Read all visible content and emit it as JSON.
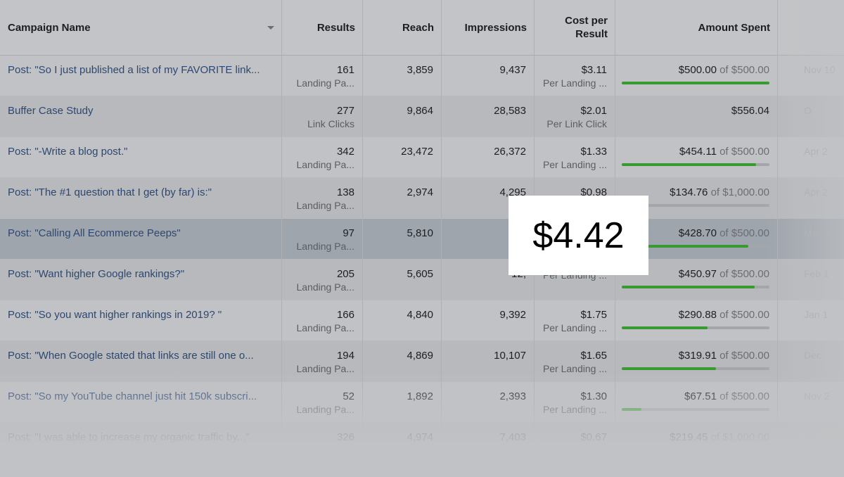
{
  "columns": {
    "campaign_name": "Campaign Name",
    "results": "Results",
    "reach": "Reach",
    "impressions": "Impressions",
    "cost_line1": "Cost per",
    "cost_line2": "Result",
    "amount_spent": "Amount Spent"
  },
  "rows": [
    {
      "name": "Post: \"So I just published a list of my FAVORITE link...",
      "results": "161",
      "result_type": "Landing Pa...",
      "reach": "3,859",
      "impressions": "9,437",
      "cost": "$3.11",
      "cost_type": "Per Landing ...",
      "spent": "$500.00",
      "of": "of $500.00",
      "progress": 1.0,
      "date": "Nov 10"
    },
    {
      "name": "Buffer Case Study",
      "results": "277",
      "result_type": "Link Clicks",
      "reach": "9,864",
      "impressions": "28,583",
      "cost": "$2.01",
      "cost_type": "Per Link Click",
      "spent": "$556.04",
      "of": "",
      "progress": null,
      "date": "O"
    },
    {
      "name": "Post: \"-Write a blog post.\"",
      "results": "342",
      "result_type": "Landing Pa...",
      "reach": "23,472",
      "impressions": "26,372",
      "cost": "$1.33",
      "cost_type": "Per Landing ...",
      "spent": "$454.11",
      "of": "of $500.00",
      "progress": 0.908,
      "date": "Apr 2"
    },
    {
      "name": "Post: \"The #1 question that I get (by far) is:\"",
      "results": "138",
      "result_type": "Landing Pa...",
      "reach": "2,974",
      "impressions": "4,295",
      "cost": "$0.98",
      "cost_type": "Per Landing ...",
      "spent": "$134.76",
      "of": "of $1,000.00",
      "progress": 0.135,
      "date": "Apr 2"
    },
    {
      "name": "Post: \"Calling All Ecommerce Peeps\"",
      "results": "97",
      "result_type": "Landing Pa...",
      "reach": "5,810",
      "impressions": "10,",
      "cost": "",
      "cost_type": "",
      "spent": "$428.70",
      "of": "of $500.00",
      "progress": 0.857,
      "date": "Mar 2"
    },
    {
      "name": "Post: \"Want higher Google rankings?\"",
      "results": "205",
      "result_type": "Landing Pa...",
      "reach": "5,605",
      "impressions": "12,",
      "cost": "",
      "cost_type": "Per Landing ...",
      "spent": "$450.97",
      "of": "of $500.00",
      "progress": 0.902,
      "date": "Feb 1"
    },
    {
      "name": "Post: \"So you want higher rankings in 2019? \"",
      "results": "166",
      "result_type": "Landing Pa...",
      "reach": "4,840",
      "impressions": "9,392",
      "cost": "$1.75",
      "cost_type": "Per Landing ...",
      "spent": "$290.88",
      "of": "of $500.00",
      "progress": 0.582,
      "date": "Jan 1"
    },
    {
      "name": "Post: \"When Google stated that links are still one o...",
      "results": "194",
      "result_type": "Landing Pa...",
      "reach": "4,869",
      "impressions": "10,107",
      "cost": "$1.65",
      "cost_type": "Per Landing ...",
      "spent": "$319.91",
      "of": "of $500.00",
      "progress": 0.64,
      "date": "Dec"
    },
    {
      "name": "Post: \"So my YouTube channel just hit 150k subscri...",
      "results": "52",
      "result_type": "Landing Pa...",
      "reach": "1,892",
      "impressions": "2,393",
      "cost": "$1.30",
      "cost_type": "Per Landing ...",
      "spent": "$67.51",
      "of": "of $500.00",
      "progress": 0.135,
      "date": "Nov 2"
    },
    {
      "name": "Post: \"I was able to increase my organic traffic by...\"",
      "results": "326",
      "result_type": "Landing Pa...",
      "reach": "4,974",
      "impressions": "7,403",
      "cost": "$0.67",
      "cost_type": "Per Landing ...",
      "spent": "$219.45",
      "of": "of $1,000.00",
      "progress": 0.219,
      "date": "Ma"
    }
  ],
  "overlay_value": "$4.42",
  "colors": {
    "progress_fill": "#3a9a32",
    "link_text": "#2e4770",
    "overlay_bg": "#ffffff"
  }
}
